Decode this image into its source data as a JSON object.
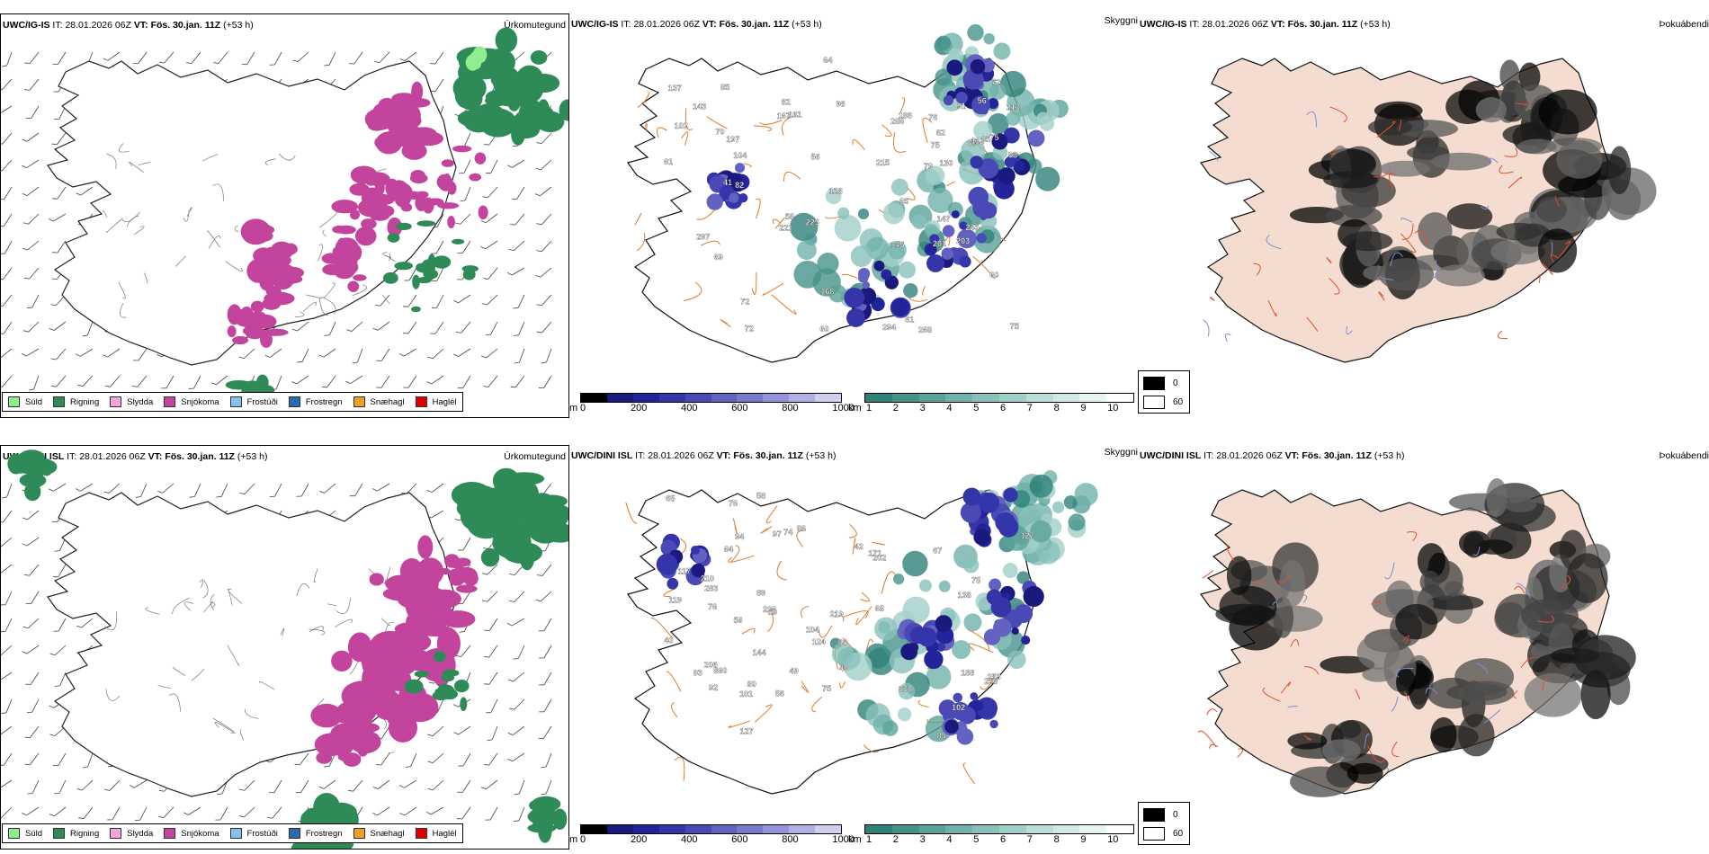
{
  "panels": {
    "p1": {
      "model": "UWC/IG-IS",
      "it_label": "IT:",
      "it_value": "28.01.2026 06Z",
      "vt_label": "VT:",
      "vt_value": "Fös. 30.jan. 11Z",
      "lead": "(+53 h)",
      "name": "Úrkomutegund"
    },
    "p2": {
      "model": "UWC/IG-IS",
      "it_label": "IT:",
      "it_value": "28.01.2026 06Z",
      "vt_label": "VT:",
      "vt_value": "Fös. 30.jan. 11Z",
      "lead": "(+53 h)",
      "name": "Skyggni"
    },
    "p3": {
      "model": "UWC/IG-IS",
      "it_label": "IT:",
      "it_value": "28.01.2026 06Z",
      "vt_label": "VT:",
      "vt_value": "Fös. 30.jan. 11Z",
      "lead": "(+53 h)",
      "name": "Þokuábendi"
    },
    "p4": {
      "model": "UWC/DINI ISL",
      "it_label": "IT:",
      "it_value": "28.01.2026 06Z",
      "vt_label": "VT:",
      "vt_value": "Fös. 30.jan. 11Z",
      "lead": "(+53 h)",
      "name": "Úrkomutegund"
    },
    "p5": {
      "model": "UWC/DINI ISL",
      "it_label": "IT:",
      "it_value": "28.01.2026 06Z",
      "vt_label": "VT:",
      "vt_value": "Fös. 30.jan. 11Z",
      "lead": "(+53 h)",
      "name": "Skyggni"
    },
    "p6": {
      "model": "UWC/DINI ISL",
      "it_label": "IT:",
      "it_value": "28.01.2026 06Z",
      "vt_label": "VT:",
      "vt_value": "Fös. 30.jan. 11Z",
      "lead": "(+53 h)",
      "name": "Þokuábendi"
    }
  },
  "precip_legend": [
    {
      "label": "Súld",
      "color": "#90ee90"
    },
    {
      "label": "Rigning",
      "color": "#2e8b57"
    },
    {
      "label": "Slydda",
      "color": "#f4a6d7"
    },
    {
      "label": "Snjókoma",
      "color": "#c2449c"
    },
    {
      "label": "Frostúði",
      "color": "#87bfef"
    },
    {
      "label": "Frostregn",
      "color": "#2b6cb0"
    },
    {
      "label": "Snæhagl",
      "color": "#f0a020"
    },
    {
      "label": "Haglél",
      "color": "#e00000"
    }
  ],
  "colorbar_m": {
    "unit": "m",
    "ticks": [
      "0",
      "200",
      "400",
      "600",
      "800",
      "1000"
    ],
    "colors": [
      "#000000",
      "#1a1a7e",
      "#24249a",
      "#3535aa",
      "#4a4ab6",
      "#6262c0",
      "#7a7acc",
      "#9494d8",
      "#b0b0e2",
      "#cfcfee"
    ]
  },
  "colorbar_km": {
    "unit": "km",
    "ticks": [
      "1",
      "2",
      "3",
      "4",
      "5",
      "6",
      "7",
      "8",
      "9",
      "10"
    ],
    "colors": [
      "#2f8279",
      "#45928a",
      "#5aa39a",
      "#71b2aa",
      "#89c1ba",
      "#a1cfc9",
      "#b9ddd8",
      "#d1eae6",
      "#e6f4f2",
      "#ffffff"
    ]
  },
  "fog_key": [
    {
      "value": "0",
      "color": "#000000"
    },
    {
      "value": "60",
      "color": "#ffffff"
    }
  ],
  "map_labels": {
    "top": [
      "85",
      "82",
      "60",
      "61",
      "67",
      "69",
      "102",
      "72",
      "75",
      "65",
      "82",
      "75",
      "72",
      "294",
      "245",
      "225",
      "213",
      "197",
      "186",
      "201",
      "221",
      "161",
      "215",
      "147",
      "143",
      "203",
      "145",
      "297",
      "167",
      "268",
      "286",
      "60",
      "91",
      "137",
      "104",
      "93",
      "58",
      "61",
      "70",
      "56",
      "82",
      "112",
      "85",
      "79",
      "72",
      "128",
      "75",
      "41",
      "168",
      "98",
      "64",
      "56",
      "76",
      "130"
    ],
    "bottom": [
      "92",
      "56",
      "64",
      "66",
      "49",
      "75",
      "74",
      "80",
      "127",
      "119",
      "97",
      "86",
      "68",
      "56",
      "58",
      "124",
      "202",
      "94",
      "102",
      "117",
      "226",
      "127",
      "283",
      "258",
      "171",
      "860",
      "210",
      "138",
      "144",
      "330",
      "253",
      "104",
      "67",
      "75",
      "59",
      "65",
      "49",
      "40",
      "219",
      "101",
      "93",
      "42",
      "89",
      "76",
      "76",
      "206",
      "188",
      "85"
    ]
  }
}
